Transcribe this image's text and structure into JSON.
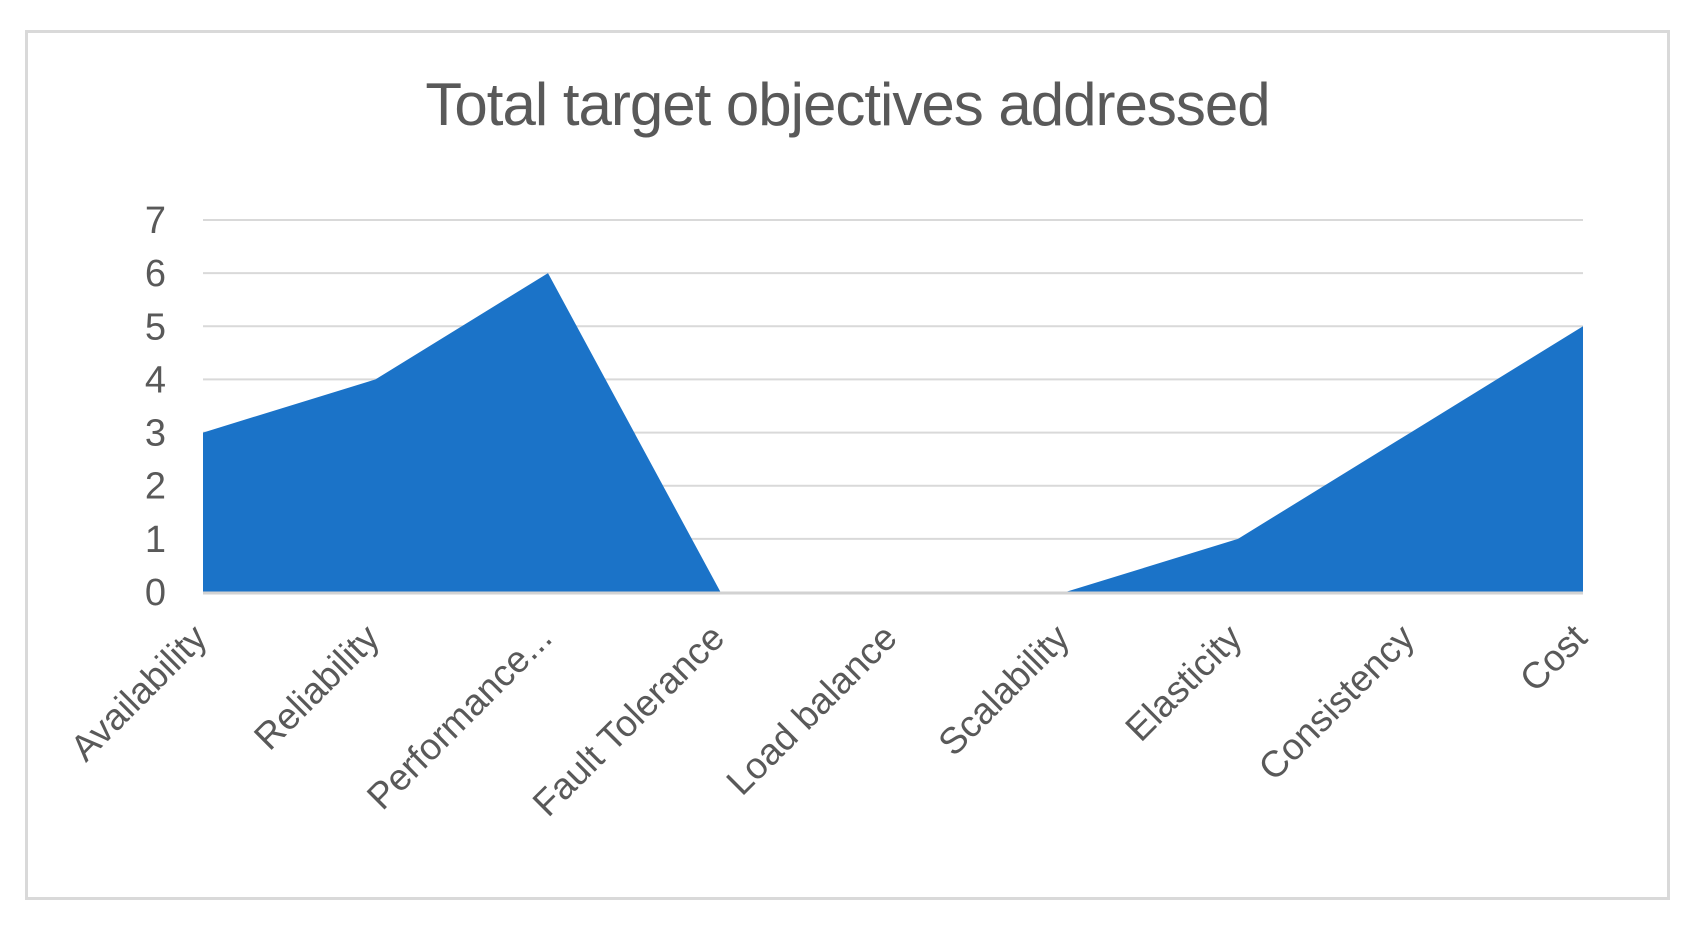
{
  "chart_data": {
    "type": "area",
    "title": "Total target objectives addressed",
    "categories": [
      "Availability",
      "Reliability",
      "Performance...",
      "Fault Tolerance",
      "Load balance",
      "Scalability",
      "Elasticity",
      "Consistency",
      "Cost"
    ],
    "values": [
      3,
      4,
      6,
      0,
      0,
      0,
      1,
      3,
      5
    ],
    "xlabel": "",
    "ylabel": "",
    "ylim": [
      0,
      7
    ],
    "yticks": [
      0,
      1,
      2,
      3,
      4,
      5,
      6,
      7
    ],
    "grid": true,
    "legend": "none",
    "x_label_rotation": -45,
    "colors": {
      "area_fill": "#1B73C8",
      "gridline": "#D9D9D9",
      "axis_line": "#D2D2D2",
      "tick_label": "#595959",
      "title": "#595959",
      "frame_border": "#D9D9D9",
      "background": "#FFFFFF"
    }
  }
}
